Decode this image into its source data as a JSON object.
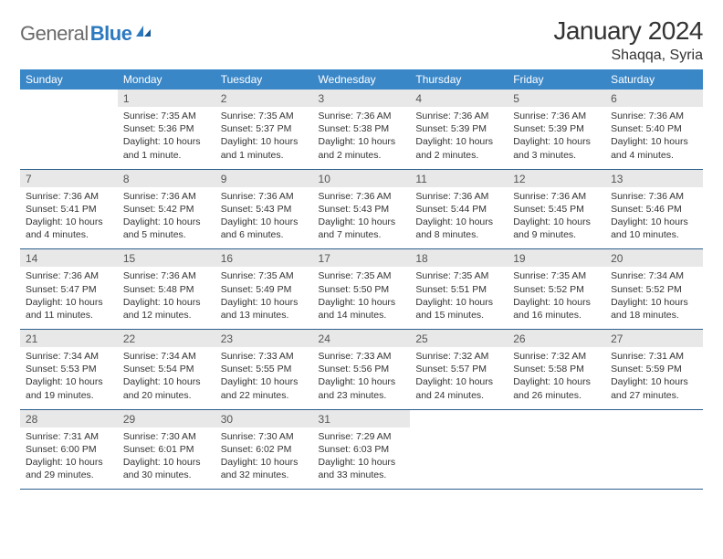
{
  "logo": {
    "part1": "General",
    "part2": "Blue"
  },
  "title": "January 2024",
  "location": "Shaqqa, Syria",
  "colors": {
    "header_bg": "#3a87c8",
    "header_text": "#ffffff",
    "daynum_bg": "#e8e8e8",
    "daynum_text": "#555555",
    "row_border": "#2c5f8d",
    "body_text": "#333333",
    "logo_gray": "#6a6a6a",
    "logo_blue": "#2c79c0"
  },
  "day_headers": [
    "Sunday",
    "Monday",
    "Tuesday",
    "Wednesday",
    "Thursday",
    "Friday",
    "Saturday"
  ],
  "weeks": [
    {
      "nums": [
        "",
        "1",
        "2",
        "3",
        "4",
        "5",
        "6"
      ],
      "cells": [
        {
          "sunrise": "",
          "sunset": "",
          "daylight": ""
        },
        {
          "sunrise": "Sunrise: 7:35 AM",
          "sunset": "Sunset: 5:36 PM",
          "daylight": "Daylight: 10 hours and 1 minute."
        },
        {
          "sunrise": "Sunrise: 7:35 AM",
          "sunset": "Sunset: 5:37 PM",
          "daylight": "Daylight: 10 hours and 1 minutes."
        },
        {
          "sunrise": "Sunrise: 7:36 AM",
          "sunset": "Sunset: 5:38 PM",
          "daylight": "Daylight: 10 hours and 2 minutes."
        },
        {
          "sunrise": "Sunrise: 7:36 AM",
          "sunset": "Sunset: 5:39 PM",
          "daylight": "Daylight: 10 hours and 2 minutes."
        },
        {
          "sunrise": "Sunrise: 7:36 AM",
          "sunset": "Sunset: 5:39 PM",
          "daylight": "Daylight: 10 hours and 3 minutes."
        },
        {
          "sunrise": "Sunrise: 7:36 AM",
          "sunset": "Sunset: 5:40 PM",
          "daylight": "Daylight: 10 hours and 4 minutes."
        }
      ]
    },
    {
      "nums": [
        "7",
        "8",
        "9",
        "10",
        "11",
        "12",
        "13"
      ],
      "cells": [
        {
          "sunrise": "Sunrise: 7:36 AM",
          "sunset": "Sunset: 5:41 PM",
          "daylight": "Daylight: 10 hours and 4 minutes."
        },
        {
          "sunrise": "Sunrise: 7:36 AM",
          "sunset": "Sunset: 5:42 PM",
          "daylight": "Daylight: 10 hours and 5 minutes."
        },
        {
          "sunrise": "Sunrise: 7:36 AM",
          "sunset": "Sunset: 5:43 PM",
          "daylight": "Daylight: 10 hours and 6 minutes."
        },
        {
          "sunrise": "Sunrise: 7:36 AM",
          "sunset": "Sunset: 5:43 PM",
          "daylight": "Daylight: 10 hours and 7 minutes."
        },
        {
          "sunrise": "Sunrise: 7:36 AM",
          "sunset": "Sunset: 5:44 PM",
          "daylight": "Daylight: 10 hours and 8 minutes."
        },
        {
          "sunrise": "Sunrise: 7:36 AM",
          "sunset": "Sunset: 5:45 PM",
          "daylight": "Daylight: 10 hours and 9 minutes."
        },
        {
          "sunrise": "Sunrise: 7:36 AM",
          "sunset": "Sunset: 5:46 PM",
          "daylight": "Daylight: 10 hours and 10 minutes."
        }
      ]
    },
    {
      "nums": [
        "14",
        "15",
        "16",
        "17",
        "18",
        "19",
        "20"
      ],
      "cells": [
        {
          "sunrise": "Sunrise: 7:36 AM",
          "sunset": "Sunset: 5:47 PM",
          "daylight": "Daylight: 10 hours and 11 minutes."
        },
        {
          "sunrise": "Sunrise: 7:36 AM",
          "sunset": "Sunset: 5:48 PM",
          "daylight": "Daylight: 10 hours and 12 minutes."
        },
        {
          "sunrise": "Sunrise: 7:35 AM",
          "sunset": "Sunset: 5:49 PM",
          "daylight": "Daylight: 10 hours and 13 minutes."
        },
        {
          "sunrise": "Sunrise: 7:35 AM",
          "sunset": "Sunset: 5:50 PM",
          "daylight": "Daylight: 10 hours and 14 minutes."
        },
        {
          "sunrise": "Sunrise: 7:35 AM",
          "sunset": "Sunset: 5:51 PM",
          "daylight": "Daylight: 10 hours and 15 minutes."
        },
        {
          "sunrise": "Sunrise: 7:35 AM",
          "sunset": "Sunset: 5:52 PM",
          "daylight": "Daylight: 10 hours and 16 minutes."
        },
        {
          "sunrise": "Sunrise: 7:34 AM",
          "sunset": "Sunset: 5:52 PM",
          "daylight": "Daylight: 10 hours and 18 minutes."
        }
      ]
    },
    {
      "nums": [
        "21",
        "22",
        "23",
        "24",
        "25",
        "26",
        "27"
      ],
      "cells": [
        {
          "sunrise": "Sunrise: 7:34 AM",
          "sunset": "Sunset: 5:53 PM",
          "daylight": "Daylight: 10 hours and 19 minutes."
        },
        {
          "sunrise": "Sunrise: 7:34 AM",
          "sunset": "Sunset: 5:54 PM",
          "daylight": "Daylight: 10 hours and 20 minutes."
        },
        {
          "sunrise": "Sunrise: 7:33 AM",
          "sunset": "Sunset: 5:55 PM",
          "daylight": "Daylight: 10 hours and 22 minutes."
        },
        {
          "sunrise": "Sunrise: 7:33 AM",
          "sunset": "Sunset: 5:56 PM",
          "daylight": "Daylight: 10 hours and 23 minutes."
        },
        {
          "sunrise": "Sunrise: 7:32 AM",
          "sunset": "Sunset: 5:57 PM",
          "daylight": "Daylight: 10 hours and 24 minutes."
        },
        {
          "sunrise": "Sunrise: 7:32 AM",
          "sunset": "Sunset: 5:58 PM",
          "daylight": "Daylight: 10 hours and 26 minutes."
        },
        {
          "sunrise": "Sunrise: 7:31 AM",
          "sunset": "Sunset: 5:59 PM",
          "daylight": "Daylight: 10 hours and 27 minutes."
        }
      ]
    },
    {
      "nums": [
        "28",
        "29",
        "30",
        "31",
        "",
        "",
        ""
      ],
      "cells": [
        {
          "sunrise": "Sunrise: 7:31 AM",
          "sunset": "Sunset: 6:00 PM",
          "daylight": "Daylight: 10 hours and 29 minutes."
        },
        {
          "sunrise": "Sunrise: 7:30 AM",
          "sunset": "Sunset: 6:01 PM",
          "daylight": "Daylight: 10 hours and 30 minutes."
        },
        {
          "sunrise": "Sunrise: 7:30 AM",
          "sunset": "Sunset: 6:02 PM",
          "daylight": "Daylight: 10 hours and 32 minutes."
        },
        {
          "sunrise": "Sunrise: 7:29 AM",
          "sunset": "Sunset: 6:03 PM",
          "daylight": "Daylight: 10 hours and 33 minutes."
        },
        {
          "sunrise": "",
          "sunset": "",
          "daylight": ""
        },
        {
          "sunrise": "",
          "sunset": "",
          "daylight": ""
        },
        {
          "sunrise": "",
          "sunset": "",
          "daylight": ""
        }
      ]
    }
  ]
}
